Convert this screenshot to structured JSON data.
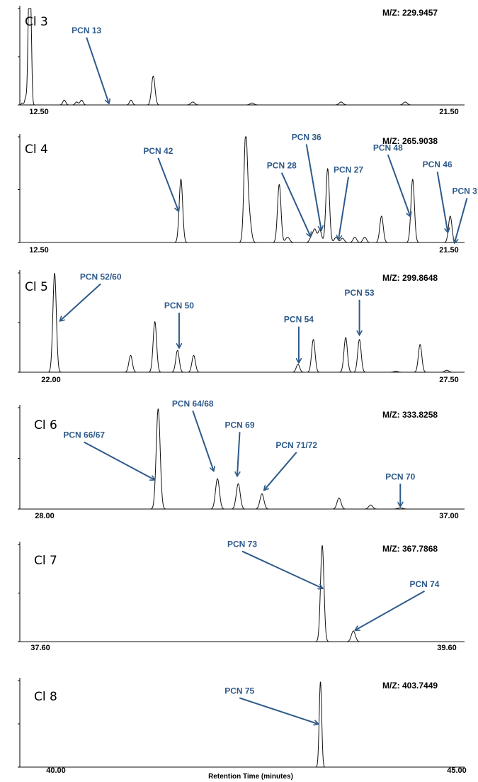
{
  "chart_data": {
    "type": "line",
    "xlabel": "Retention Time (minutes)",
    "colors": {
      "trace": "#111111",
      "annotation": "#2e5a8a",
      "axis": "#000000"
    },
    "panels": [
      {
        "chlorination": "Cl 3",
        "mz": "M/Z: 229.9457",
        "xlim": [
          12.5,
          21.5
        ],
        "tick_labels": [
          "12.50",
          "21.50"
        ],
        "peaks": [
          {
            "x": 12.55,
            "h": 0.02,
            "w": 0.02
          },
          {
            "x": 12.62,
            "h": 0.08,
            "w": 0.02
          },
          {
            "x": 12.68,
            "h": 0.97,
            "w": 0.02
          },
          {
            "x": 12.72,
            "h": 0.97,
            "w": 0.02
          },
          {
            "x": 13.4,
            "h": 0.05,
            "w": 0.03
          },
          {
            "x": 13.65,
            "h": 0.03,
            "w": 0.03
          },
          {
            "x": 13.75,
            "h": 0.05,
            "w": 0.03
          },
          {
            "x": 14.75,
            "h": 0.05,
            "w": 0.03
          },
          {
            "x": 15.2,
            "h": 0.3,
            "w": 0.035
          },
          {
            "x": 16.0,
            "h": 0.03,
            "w": 0.04
          },
          {
            "x": 17.2,
            "h": 0.02,
            "w": 0.04
          },
          {
            "x": 19.0,
            "h": 0.03,
            "w": 0.04
          },
          {
            "x": 20.3,
            "h": 0.03,
            "w": 0.04
          }
        ],
        "annotations": [
          {
            "label": "PCN 13",
            "x": 14.3,
            "y": 0.02,
            "tx": 13.85,
            "ty": 0.7
          }
        ]
      },
      {
        "chlorination": "Cl 4",
        "mz": "M/Z: 265.9038",
        "xlim": [
          12.5,
          21.5
        ],
        "tick_labels": [
          "12.50",
          "21.50"
        ],
        "peaks": [
          {
            "x": 15.76,
            "h": 0.6,
            "w": 0.035
          },
          {
            "x": 17.07,
            "h": 1.0,
            "w": 0.035
          },
          {
            "x": 17.14,
            "h": 0.25,
            "w": 0.04
          },
          {
            "x": 17.75,
            "h": 0.55,
            "w": 0.035
          },
          {
            "x": 17.92,
            "h": 0.05,
            "w": 0.04
          },
          {
            "x": 18.4,
            "h": 0.05,
            "w": 0.035
          },
          {
            "x": 18.47,
            "h": 0.12,
            "w": 0.035
          },
          {
            "x": 18.57,
            "h": 0.12,
            "w": 0.035
          },
          {
            "x": 18.73,
            "h": 0.7,
            "w": 0.035
          },
          {
            "x": 18.9,
            "h": 0.05,
            "w": 0.035
          },
          {
            "x": 19.03,
            "h": 0.04,
            "w": 0.035
          },
          {
            "x": 19.28,
            "h": 0.05,
            "w": 0.035
          },
          {
            "x": 19.48,
            "h": 0.05,
            "w": 0.035
          },
          {
            "x": 19.82,
            "h": 0.25,
            "w": 0.035
          },
          {
            "x": 20.45,
            "h": 0.6,
            "w": 0.035
          },
          {
            "x": 21.21,
            "h": 0.25,
            "w": 0.035
          }
        ],
        "annotations": [
          {
            "label": "PCN 42",
            "x": 15.71,
            "y": 0.3,
            "tx": 15.3,
            "ty": 0.8
          },
          {
            "label": "PCN 36",
            "x": 18.6,
            "y": 0.12,
            "tx": 18.3,
            "ty": 0.93
          },
          {
            "label": "PCN 28",
            "x": 18.38,
            "y": 0.06,
            "tx": 17.8,
            "ty": 0.66
          },
          {
            "label": "PCN 27",
            "x": 18.95,
            "y": 0.03,
            "tx": 19.15,
            "ty": 0.62
          },
          {
            "label": "PCN 48",
            "x": 20.4,
            "y": 0.25,
            "tx": 19.95,
            "ty": 0.83
          },
          {
            "label": "PCN 46",
            "x": 21.16,
            "y": 0.1,
            "tx": 20.95,
            "ty": 0.67
          },
          {
            "label": "PCN 31",
            "x": 21.3,
            "y": 0.0,
            "tx": 21.55,
            "ty": 0.42
          }
        ]
      },
      {
        "chlorination": "Cl 5",
        "mz": "M/Z: 299.8648",
        "xlim": [
          22.0,
          27.5
        ],
        "tick_labels": [
          "22.00",
          "27.50"
        ],
        "peaks": [
          {
            "x": 22.43,
            "h": 1.0,
            "w": 0.035
          },
          {
            "x": 23.37,
            "h": 0.17,
            "w": 0.035
          },
          {
            "x": 23.67,
            "h": 0.51,
            "w": 0.035
          },
          {
            "x": 23.95,
            "h": 0.22,
            "w": 0.035
          },
          {
            "x": 24.15,
            "h": 0.17,
            "w": 0.035
          },
          {
            "x": 25.44,
            "h": 0.08,
            "w": 0.035
          },
          {
            "x": 25.63,
            "h": 0.33,
            "w": 0.035
          },
          {
            "x": 26.03,
            "h": 0.35,
            "w": 0.035
          },
          {
            "x": 26.2,
            "h": 0.33,
            "w": 0.035
          },
          {
            "x": 26.65,
            "h": 0.01,
            "w": 0.04
          },
          {
            "x": 26.95,
            "h": 0.28,
            "w": 0.035
          },
          {
            "x": 27.28,
            "h": 0.02,
            "w": 0.04
          }
        ],
        "annotations": [
          {
            "label": "PCN 52/60",
            "x": 22.5,
            "y": 0.52,
            "tx": 23.0,
            "ty": 0.89
          },
          {
            "label": "PCN 50",
            "x": 23.97,
            "y": 0.25,
            "tx": 23.97,
            "ty": 0.6
          },
          {
            "label": "PCN 54",
            "x": 25.45,
            "y": 0.1,
            "tx": 25.45,
            "ty": 0.46
          },
          {
            "label": "PCN 53",
            "x": 26.2,
            "y": 0.38,
            "tx": 26.2,
            "ty": 0.73
          }
        ]
      },
      {
        "chlorination": "Cl 6",
        "mz": "M/Z: 333.8258",
        "xlim": [
          28.0,
          37.0
        ],
        "tick_labels": [
          "28.00",
          "37.00"
        ],
        "peaks": [
          {
            "x": 30.8,
            "h": 0.99,
            "w": 0.04
          },
          {
            "x": 32.0,
            "h": 0.3,
            "w": 0.04
          },
          {
            "x": 32.42,
            "h": 0.25,
            "w": 0.04
          },
          {
            "x": 32.9,
            "h": 0.15,
            "w": 0.04
          },
          {
            "x": 34.46,
            "h": 0.11,
            "w": 0.04
          },
          {
            "x": 35.1,
            "h": 0.04,
            "w": 0.04
          },
          {
            "x": 35.7,
            "h": 0.012,
            "w": 0.05
          }
        ],
        "annotations": [
          {
            "label": "PCN 66/67",
            "x": 30.72,
            "y": 0.29,
            "tx": 29.3,
            "ty": 0.66
          },
          {
            "label": "PCN 64/68",
            "x": 31.92,
            "y": 0.38,
            "tx": 31.5,
            "ty": 0.97
          },
          {
            "label": "PCN 69",
            "x": 32.4,
            "y": 0.33,
            "tx": 32.45,
            "ty": 0.76
          },
          {
            "label": "PCN 71/72",
            "x": 32.95,
            "y": 0.19,
            "tx": 33.6,
            "ty": 0.56
          },
          {
            "label": "PCN 70",
            "x": 35.7,
            "y": 0.03,
            "tx": 35.7,
            "ty": 0.25
          }
        ]
      },
      {
        "chlorination": "Cl 7",
        "mz": "M/Z: 367.7868",
        "xlim": [
          37.6,
          39.6
        ],
        "tick_labels": [
          "37.60",
          "39.60"
        ],
        "peaks": [
          {
            "x": 38.96,
            "h": 0.99,
            "w": 0.035
          },
          {
            "x": 39.1,
            "h": 0.11,
            "w": 0.04
          }
        ],
        "annotations": [
          {
            "label": "PCN 73",
            "x": 38.96,
            "y": 0.55,
            "tx": 38.6,
            "ty": 0.93
          },
          {
            "label": "PCN 74",
            "x": 39.11,
            "y": 0.12,
            "tx": 39.42,
            "ty": 0.52
          }
        ]
      },
      {
        "chlorination": "Cl 8",
        "mz": "M/Z: 403.7449",
        "xlim": [
          40.0,
          45.0
        ],
        "tick_labels": [
          "40.00",
          "45.00"
        ],
        "peaks": [
          {
            "x": 43.38,
            "h": 0.99,
            "w": 0.025
          }
        ],
        "annotations": [
          {
            "label": "PCN 75",
            "x": 43.35,
            "y": 0.5,
            "tx": 42.47,
            "ty": 0.8
          }
        ]
      }
    ]
  }
}
